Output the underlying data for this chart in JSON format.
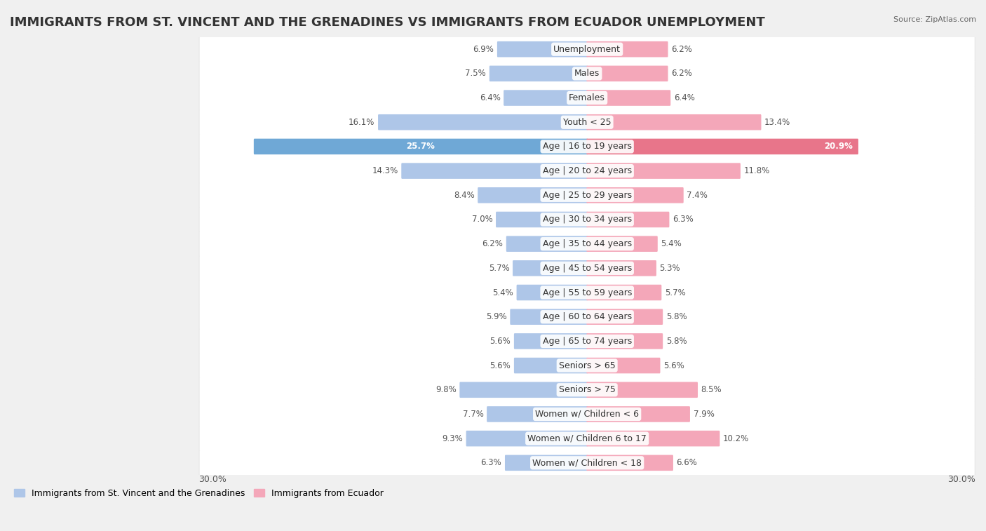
{
  "title": "IMMIGRANTS FROM ST. VINCENT AND THE GRENADINES VS IMMIGRANTS FROM ECUADOR UNEMPLOYMENT",
  "source": "Source: ZipAtlas.com",
  "categories": [
    "Unemployment",
    "Males",
    "Females",
    "Youth < 25",
    "Age | 16 to 19 years",
    "Age | 20 to 24 years",
    "Age | 25 to 29 years",
    "Age | 30 to 34 years",
    "Age | 35 to 44 years",
    "Age | 45 to 54 years",
    "Age | 55 to 59 years",
    "Age | 60 to 64 years",
    "Age | 65 to 74 years",
    "Seniors > 65",
    "Seniors > 75",
    "Women w/ Children < 6",
    "Women w/ Children 6 to 17",
    "Women w/ Children < 18"
  ],
  "left_values": [
    6.9,
    7.5,
    6.4,
    16.1,
    25.7,
    14.3,
    8.4,
    7.0,
    6.2,
    5.7,
    5.4,
    5.9,
    5.6,
    5.6,
    9.8,
    7.7,
    9.3,
    6.3
  ],
  "right_values": [
    6.2,
    6.2,
    6.4,
    13.4,
    20.9,
    11.8,
    7.4,
    6.3,
    5.4,
    5.3,
    5.7,
    5.8,
    5.8,
    5.6,
    8.5,
    7.9,
    10.2,
    6.6
  ],
  "left_color": "#aec6e8",
  "right_color": "#f4a7b9",
  "left_label": "Immigrants from St. Vincent and the Grenadines",
  "right_label": "Immigrants from Ecuador",
  "bg_color": "#f0f0f0",
  "bar_bg_color": "#ffffff",
  "row_alt_color": "#e8e8e8",
  "max_val": 30.0,
  "axis_label_left": "30.0%",
  "axis_label_right": "30.0%",
  "title_fontsize": 13,
  "label_fontsize": 9,
  "value_fontsize": 8.5,
  "highlight_left_color": "#6fa8d6",
  "highlight_right_color": "#e8758a"
}
